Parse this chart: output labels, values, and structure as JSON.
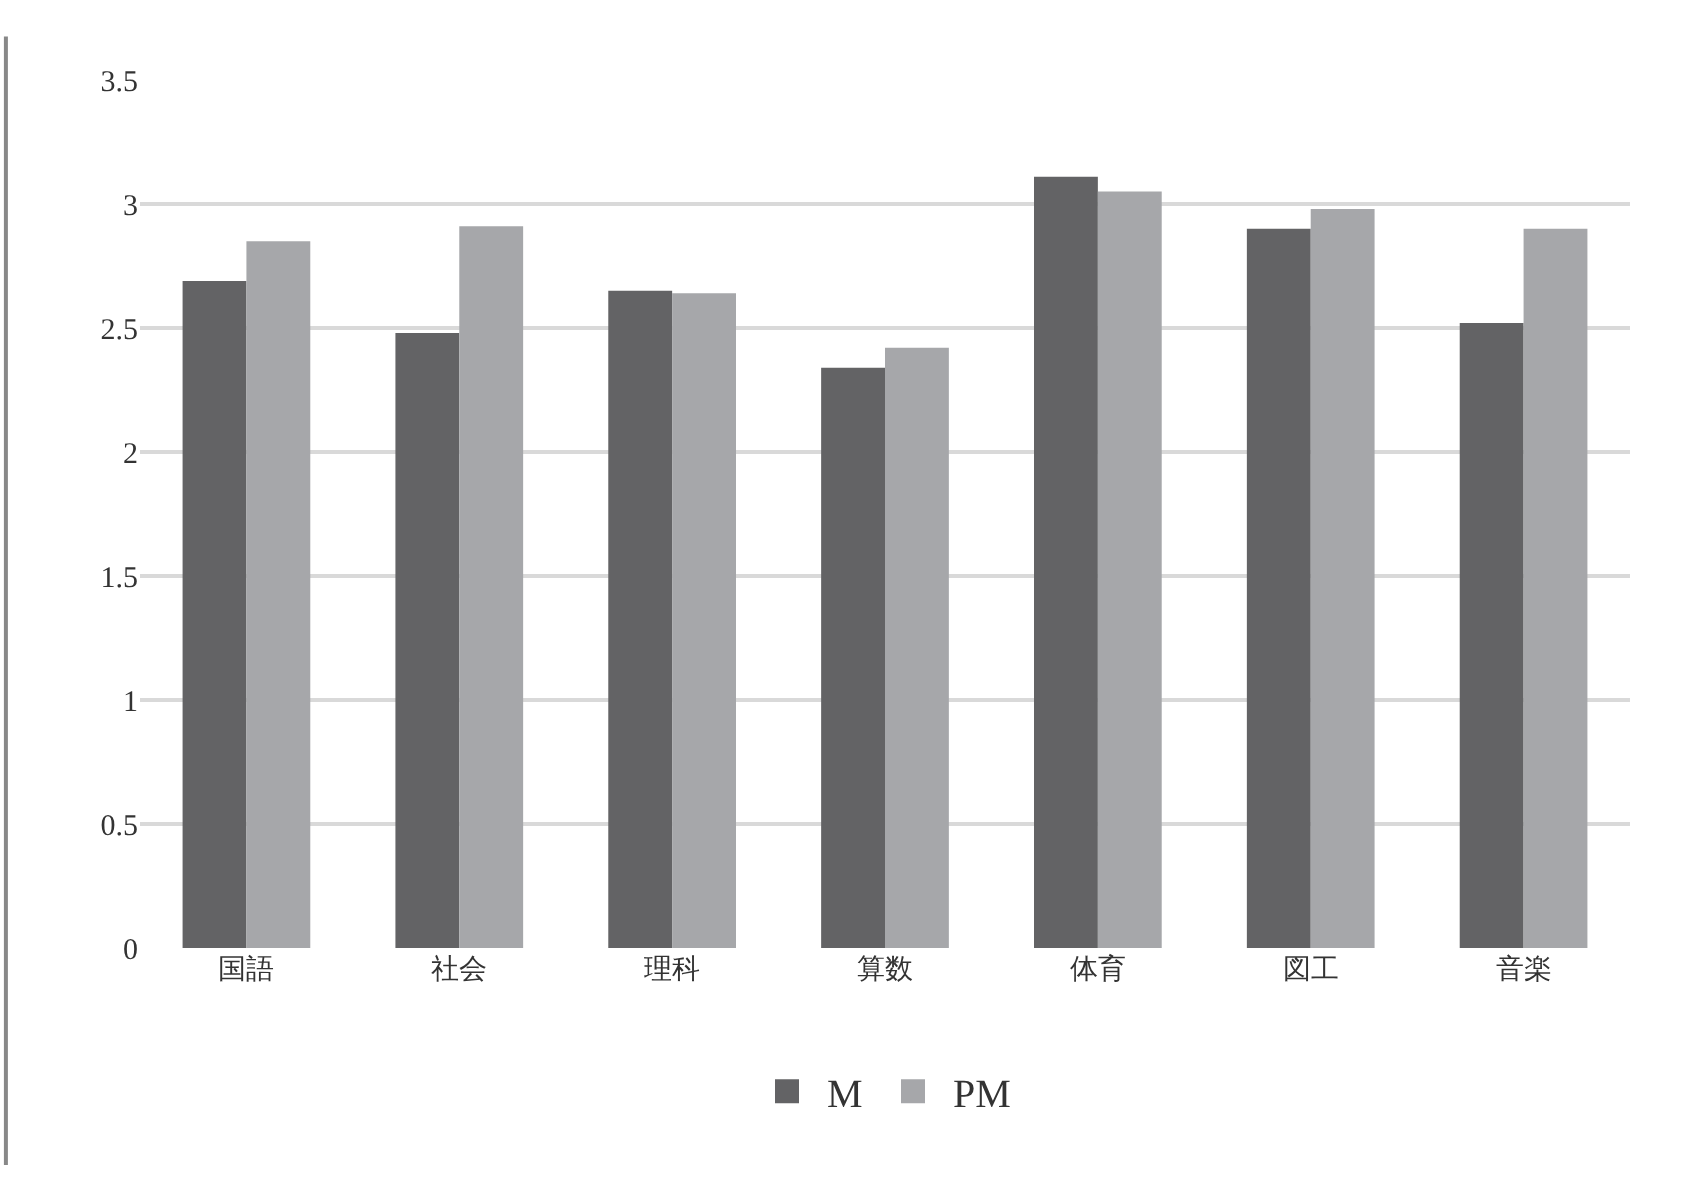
{
  "chart_data": {
    "type": "bar",
    "categories": [
      "国語",
      "社会",
      "理科",
      "算数",
      "体育",
      "図工",
      "音楽"
    ],
    "series": [
      {
        "name": "M",
        "color": "#636365",
        "values": [
          2.69,
          2.48,
          2.65,
          2.34,
          3.11,
          2.9,
          2.52
        ]
      },
      {
        "name": "PM",
        "color": "#a6a7aa",
        "values": [
          2.85,
          2.91,
          2.64,
          2.42,
          3.05,
          2.98,
          2.9
        ]
      }
    ],
    "ylim": [
      0,
      3.5
    ],
    "yticks": [
      0,
      0.5,
      1,
      1.5,
      2,
      2.5,
      3,
      3.5
    ],
    "grid": "y",
    "legend": "bottom"
  }
}
